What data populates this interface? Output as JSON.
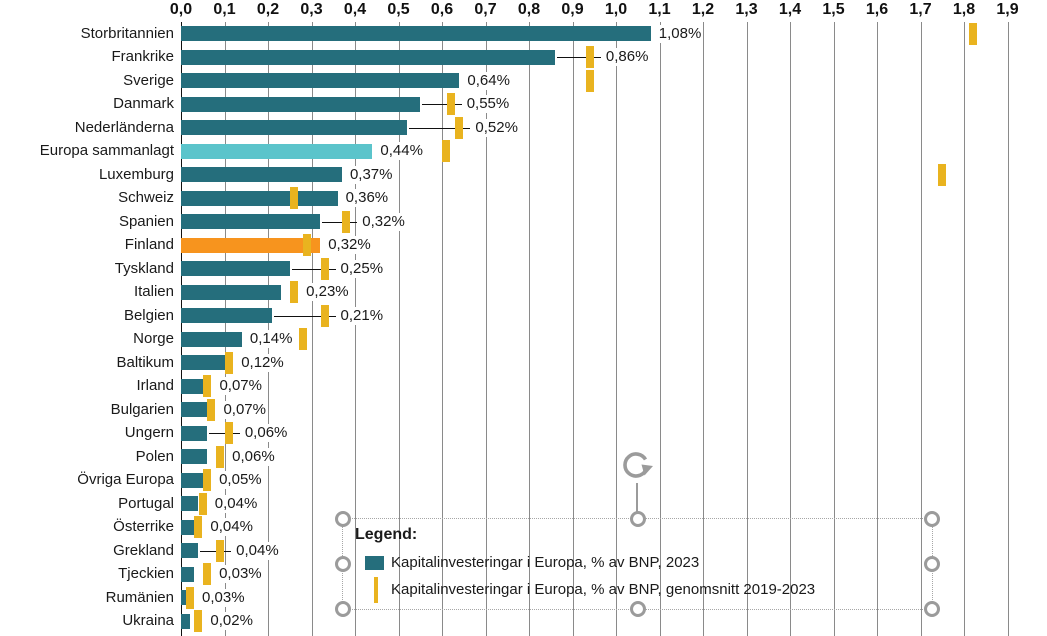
{
  "colors": {
    "bar_default": "#256e7c",
    "bar_europe_total": "#5bc4cb",
    "bar_finland": "#f7941e",
    "avg_tick": "#e9b31f",
    "gridline": "#8a8a8a",
    "axis_line": "#111111",
    "selection_gray": "#9b9b9b"
  },
  "legend": {
    "title": "Legend:",
    "items": [
      {
        "swatch": "bar",
        "color": "#256e7c",
        "label": "Kapitalinvesteringar i Europa, % av BNP, 2023"
      },
      {
        "swatch": "line",
        "color": "#e9b31f",
        "label": "Kapitalinvesteringar i Europa, % av BNP, genomsnitt 2019-2023"
      }
    ]
  },
  "chart_data": {
    "type": "bar",
    "orientation": "horizontal",
    "title": "",
    "xlabel": "",
    "ylabel": "",
    "xlim": [
      0,
      1.9
    ],
    "x_tick_step": 0.1,
    "x_tick_labels": [
      "0,0",
      "0,1",
      "0,2",
      "0,3",
      "0,4",
      "0,5",
      "0,6",
      "0,7",
      "0,8",
      "0,9",
      "1,0",
      "1,1",
      "1,2",
      "1,3",
      "1,4",
      "1,5",
      "1,6",
      "1,7",
      "1,8",
      "1,9"
    ],
    "grid": true,
    "categories": [
      "Storbritannien",
      "Frankrike",
      "Sverige",
      "Danmark",
      "Nederländerna",
      "Europa sammanlagt",
      "Luxemburg",
      "Schweiz",
      "Spanien",
      "Finland",
      "Tyskland",
      "Italien",
      "Belgien",
      "Norge",
      "Baltikum",
      "Irland",
      "Bulgarien",
      "Ungern",
      "Polen",
      "Övriga Europa",
      "Portugal",
      "Österrike",
      "Grekland",
      "Tjeckien",
      "Rumänien",
      "Ukraina"
    ],
    "series": [
      {
        "name": "Kapitalinvesteringar i Europa, % av BNP, 2023",
        "values": [
          1.08,
          0.86,
          0.64,
          0.55,
          0.52,
          0.44,
          0.37,
          0.36,
          0.32,
          0.32,
          0.25,
          0.23,
          0.21,
          0.14,
          0.12,
          0.07,
          0.07,
          0.06,
          0.06,
          0.05,
          0.04,
          0.04,
          0.04,
          0.03,
          0.03,
          0.02
        ],
        "value_labels": [
          "1,08%",
          "0,86%",
          "0,64%",
          "0,55%",
          "0,52%",
          "0,44%",
          "0,37%",
          "0,36%",
          "0,32%",
          "0,32%",
          "0,25%",
          "0,23%",
          "0,21%",
          "0,14%",
          "0,12%",
          "0,07%",
          "0,07%",
          "0,06%",
          "0,06%",
          "0,05%",
          "0,04%",
          "0,04%",
          "0,04%",
          "0,03%",
          "0,03%",
          "0,02%"
        ]
      },
      {
        "name": "Kapitalinvesteringar i Europa, % av BNP, genomsnitt 2019-2023",
        "values": [
          1.82,
          0.94,
          0.94,
          0.62,
          0.64,
          0.61,
          1.75,
          0.26,
          0.38,
          0.29,
          0.33,
          0.26,
          0.33,
          0.28,
          0.11,
          0.06,
          0.07,
          0.11,
          0.09,
          0.06,
          0.05,
          0.04,
          0.09,
          0.06,
          0.02,
          0.04
        ]
      }
    ],
    "highlight_rows": {
      "Europa sammanlagt": "#5bc4cb",
      "Finland": "#f7941e"
    },
    "callout_rows": [
      "Frankrike",
      "Danmark",
      "Nederländerna",
      "Spanien",
      "Tyskland",
      "Belgien",
      "Ungern",
      "Grekland"
    ],
    "legend_position": "bottom"
  }
}
